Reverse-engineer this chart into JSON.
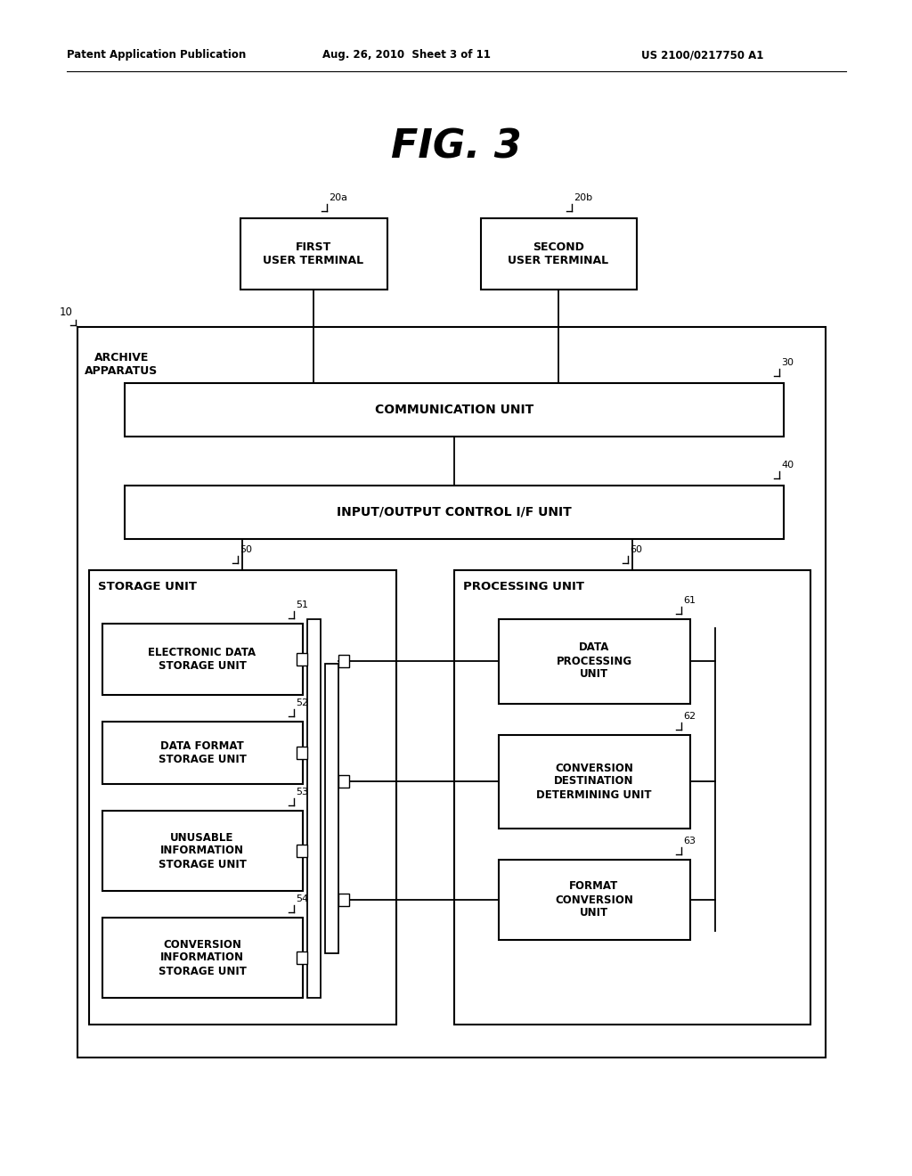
{
  "header_left": "Patent Application Publication",
  "header_mid": "Aug. 26, 2010  Sheet 3 of 11",
  "header_right": "US 2100/0217750 A1",
  "fig_title": "FIG. 3",
  "bg_color": "#ffffff",
  "boxes": {
    "first_user_terminal": {
      "label": "FIRST\nUSER TERMINAL",
      "ref": "20a"
    },
    "second_user_terminal": {
      "label": "SECOND\nUSER TERMINAL",
      "ref": "20b"
    },
    "communication_unit": {
      "label": "COMMUNICATION UNIT",
      "ref": "30"
    },
    "io_control": {
      "label": "INPUT/OUTPUT CONTROL I/F UNIT",
      "ref": "40"
    },
    "storage_unit": {
      "label": "STORAGE UNIT",
      "ref": "50"
    },
    "processing_unit": {
      "label": "PROCESSING UNIT",
      "ref": "60"
    },
    "electronic_data": {
      "label": "ELECTRONIC DATA\nSTORAGE UNIT",
      "ref": "51"
    },
    "data_format": {
      "label": "DATA FORMAT\nSTORAGE UNIT",
      "ref": "52"
    },
    "unusable_info": {
      "label": "UNUSABLE\nINFORMATION\nSTORAGE UNIT",
      "ref": "53"
    },
    "conversion_info": {
      "label": "CONVERSION\nINFORMATION\nSTORAGE UNIT",
      "ref": "54"
    },
    "data_processing": {
      "label": "DATA\nPROCESSING\nUNIT",
      "ref": "61"
    },
    "conversion_dest": {
      "label": "CONVERSION\nDESTINATION\nDETERMINING UNIT",
      "ref": "62"
    },
    "format_conversion": {
      "label": "FORMAT\nCONVERSION\nUNIT",
      "ref": "63"
    }
  }
}
